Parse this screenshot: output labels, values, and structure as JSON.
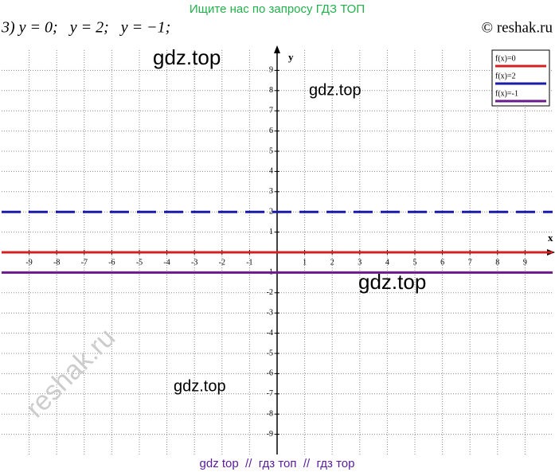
{
  "header": {
    "banner": "Ищите нас по запросу ГДЗ ТОП",
    "problem": "3) y = 0;   y = 2;   y = −1;",
    "copyright": "© reshak.ru"
  },
  "watermarks": [
    "gdz.top",
    "gdz.top",
    "gdz.top",
    "gdz.top",
    "reshak.ru"
  ],
  "footer": "gdz top  //  гдз топ  //  гдз тор",
  "chart_data": {
    "type": "line",
    "x_label": "x",
    "y_label": "y",
    "x": [
      -10,
      10
    ],
    "series": [
      {
        "name": "f(x)=0",
        "color": "#d42020",
        "dash": "solid",
        "values": [
          0,
          0
        ]
      },
      {
        "name": "f(x)=2",
        "color": "#1a1aa8",
        "dash": "dashed",
        "values": [
          2,
          2
        ]
      },
      {
        "name": "f(x)=-1",
        "color": "#6a1a8a",
        "dash": "solid",
        "values": [
          -1,
          -1
        ]
      }
    ],
    "xlim": [
      -10,
      10
    ],
    "ylim": [
      -10,
      10
    ],
    "xticks": [
      -9,
      -8,
      -7,
      -6,
      -5,
      -4,
      -3,
      -2,
      -1,
      1,
      2,
      3,
      4,
      5,
      6,
      7,
      8,
      9
    ],
    "yticks": [
      -9,
      -8,
      -7,
      -6,
      -5,
      -4,
      -3,
      -2,
      -1,
      1,
      2,
      3,
      4,
      5,
      6,
      7,
      8,
      9
    ],
    "grid": true,
    "legend": "upper right"
  }
}
